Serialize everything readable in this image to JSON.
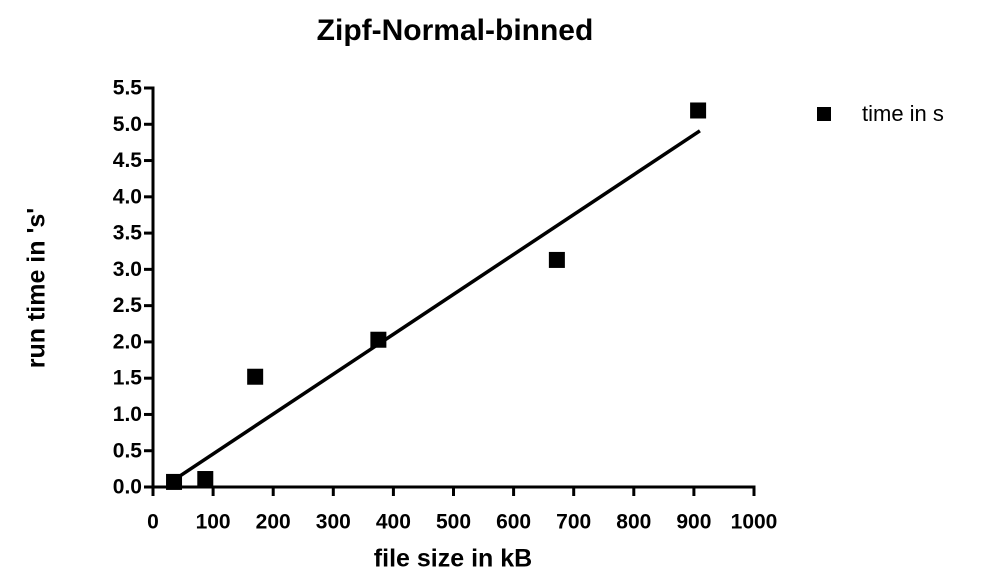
{
  "chart_data": {
    "type": "scatter",
    "title": "Zipf-Normal-binned",
    "x_label": "file size in kB",
    "y_label": "run time in 's'",
    "series": [
      {
        "name": "time in s",
        "color": "#000000",
        "x": [
          35,
          87,
          170,
          375,
          672,
          907
        ],
        "values": [
          0.07,
          0.11,
          1.52,
          2.03,
          3.13,
          5.19
        ]
      }
    ],
    "fit": {
      "x": [
        28,
        910
      ],
      "y": [
        0.06,
        4.91
      ],
      "color": "#000000"
    },
    "xlim": [
      0,
      1000
    ],
    "xticks": [
      0,
      100,
      200,
      300,
      400,
      500,
      600,
      700,
      800,
      900,
      1000
    ],
    "ylim": [
      0,
      5.5
    ],
    "yticks": [
      {
        "value": 0,
        "label": "0.0"
      },
      0.5,
      {
        "value": 1,
        "label": "1.0"
      },
      1.5,
      {
        "value": 2,
        "label": "2.0"
      },
      2.5,
      {
        "value": 3,
        "label": "3.0"
      },
      3.5,
      {
        "value": 4,
        "label": "4.0"
      },
      4.5,
      {
        "value": 5,
        "label": "5.0"
      },
      5.5
    ],
    "grid": false,
    "legend": "right"
  }
}
